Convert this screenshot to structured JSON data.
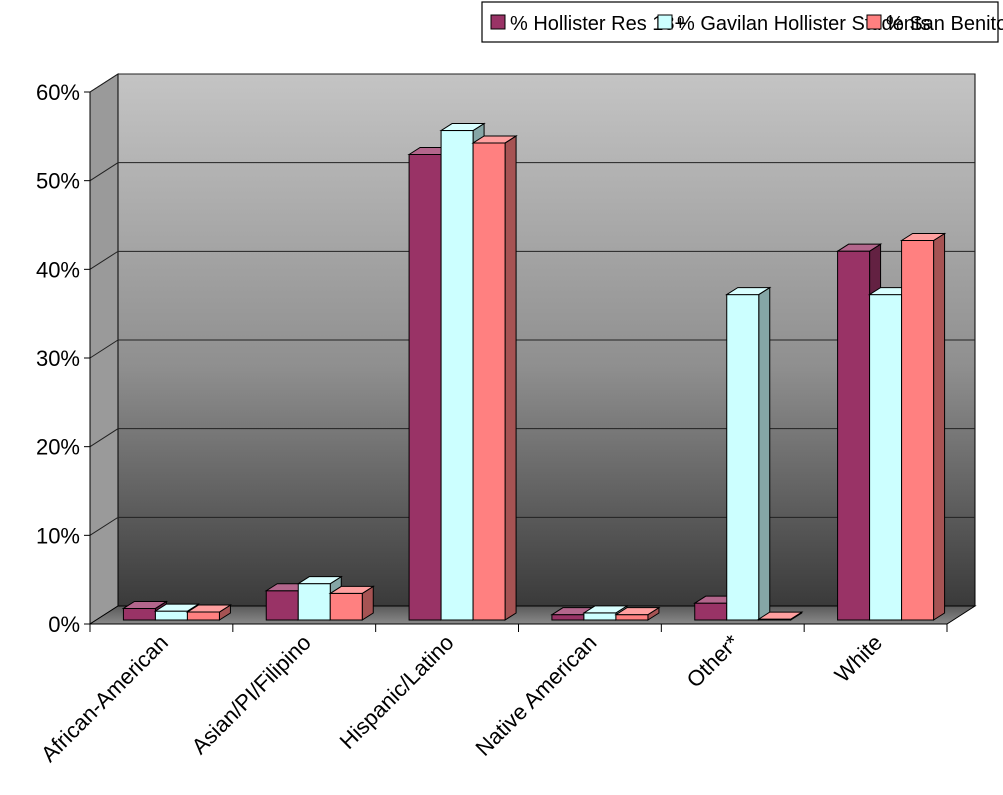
{
  "chart_data": {
    "type": "bar",
    "title": "",
    "xlabel": "",
    "ylabel": "",
    "ylim": [
      0,
      0.6
    ],
    "y_ticks": [
      {
        "value": 0,
        "label": "0%"
      },
      {
        "value": 0.1,
        "label": "10%"
      },
      {
        "value": 0.2,
        "label": "20%"
      },
      {
        "value": 0.3,
        "label": "30%"
      },
      {
        "value": 0.4,
        "label": "40%"
      },
      {
        "value": 0.5,
        "label": "50%"
      },
      {
        "value": 0.6,
        "label": "60%"
      }
    ],
    "grid": true,
    "legend_position": "top",
    "categories": [
      "African-American",
      "Asian/PI/Filipino",
      "Hispanic/Latino",
      "Native American",
      "Other*",
      "White"
    ],
    "series": [
      {
        "name": "% Hollister Res 18+",
        "color": "#993366",
        "values": [
          0.013,
          0.033,
          0.525,
          0.006,
          0.019,
          0.416
        ]
      },
      {
        "name": "% Gavilan Hollister Students",
        "color": "#CCFFFF",
        "values": [
          0.01,
          0.041,
          0.552,
          0.008,
          0.367,
          0.367
        ]
      },
      {
        "name": "% San Benito High Seniors",
        "color": "#FF8080",
        "values": [
          0.009,
          0.03,
          0.538,
          0.006,
          0.001,
          0.428
        ]
      }
    ]
  }
}
